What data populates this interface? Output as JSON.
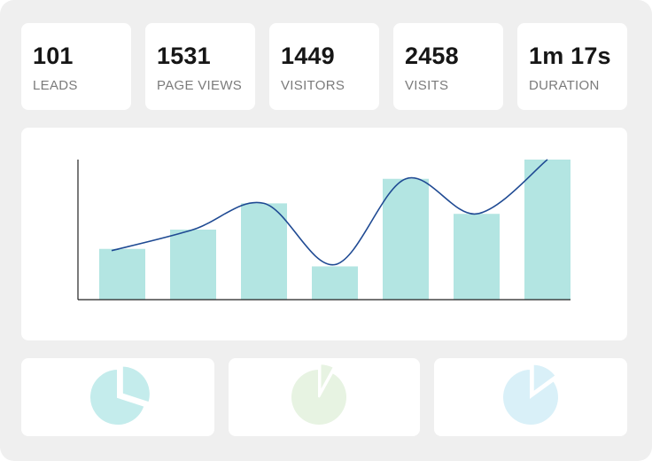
{
  "stats": [
    {
      "value": "101",
      "label": "LEADS"
    },
    {
      "value": "1531",
      "label": "PAGE VIEWS"
    },
    {
      "value": "1449",
      "label": "VISITORS"
    },
    {
      "value": "2458",
      "label": "VISITS"
    },
    {
      "value": "1m 17s",
      "label": "DURATION"
    }
  ],
  "chart_data": {
    "type": "bar",
    "categories": [
      "",
      "",
      "",
      "",
      "",
      "",
      ""
    ],
    "values": [
      29,
      40,
      55,
      19,
      69,
      49,
      80
    ],
    "line_values": [
      28,
      40,
      55,
      20,
      69,
      49,
      80
    ],
    "ylim": [
      0,
      80
    ],
    "xlabel": "",
    "ylabel": "",
    "grid": false,
    "colors": {
      "bar": "#b3e5e2",
      "line": "#1f4a93",
      "axis": "#222222"
    }
  },
  "pie_widgets": [
    {
      "name": "teal-pie",
      "slice_percent": 30,
      "color": "#c4ecec"
    },
    {
      "name": "green-pie",
      "slice_percent": 8,
      "color": "#e7f3e2"
    },
    {
      "name": "blue-pie",
      "slice_percent": 15,
      "color": "#d9f0f8"
    }
  ]
}
